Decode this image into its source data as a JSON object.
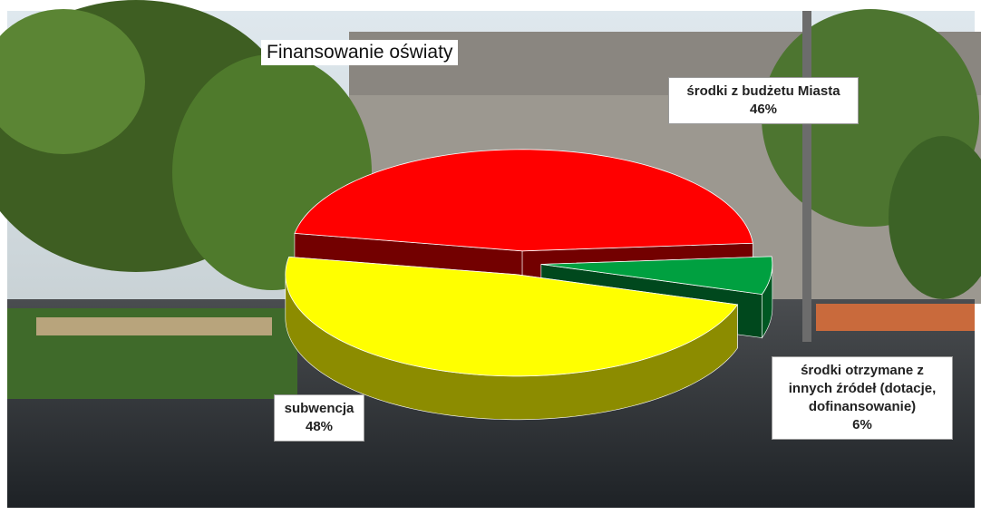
{
  "chart_data": {
    "type": "pie",
    "title": "Finansowanie oświaty",
    "categories": [
      "środki z budżetu Miasta",
      "środki otrzymane z innych źródeł (dotacje, dofinansowanie)",
      "subwencja"
    ],
    "values": [
      46,
      6,
      48
    ],
    "value_labels": [
      "46%",
      "6%",
      "48%"
    ],
    "colors": [
      "#ff0000",
      "#00a040",
      "#ffff00"
    ]
  }
}
